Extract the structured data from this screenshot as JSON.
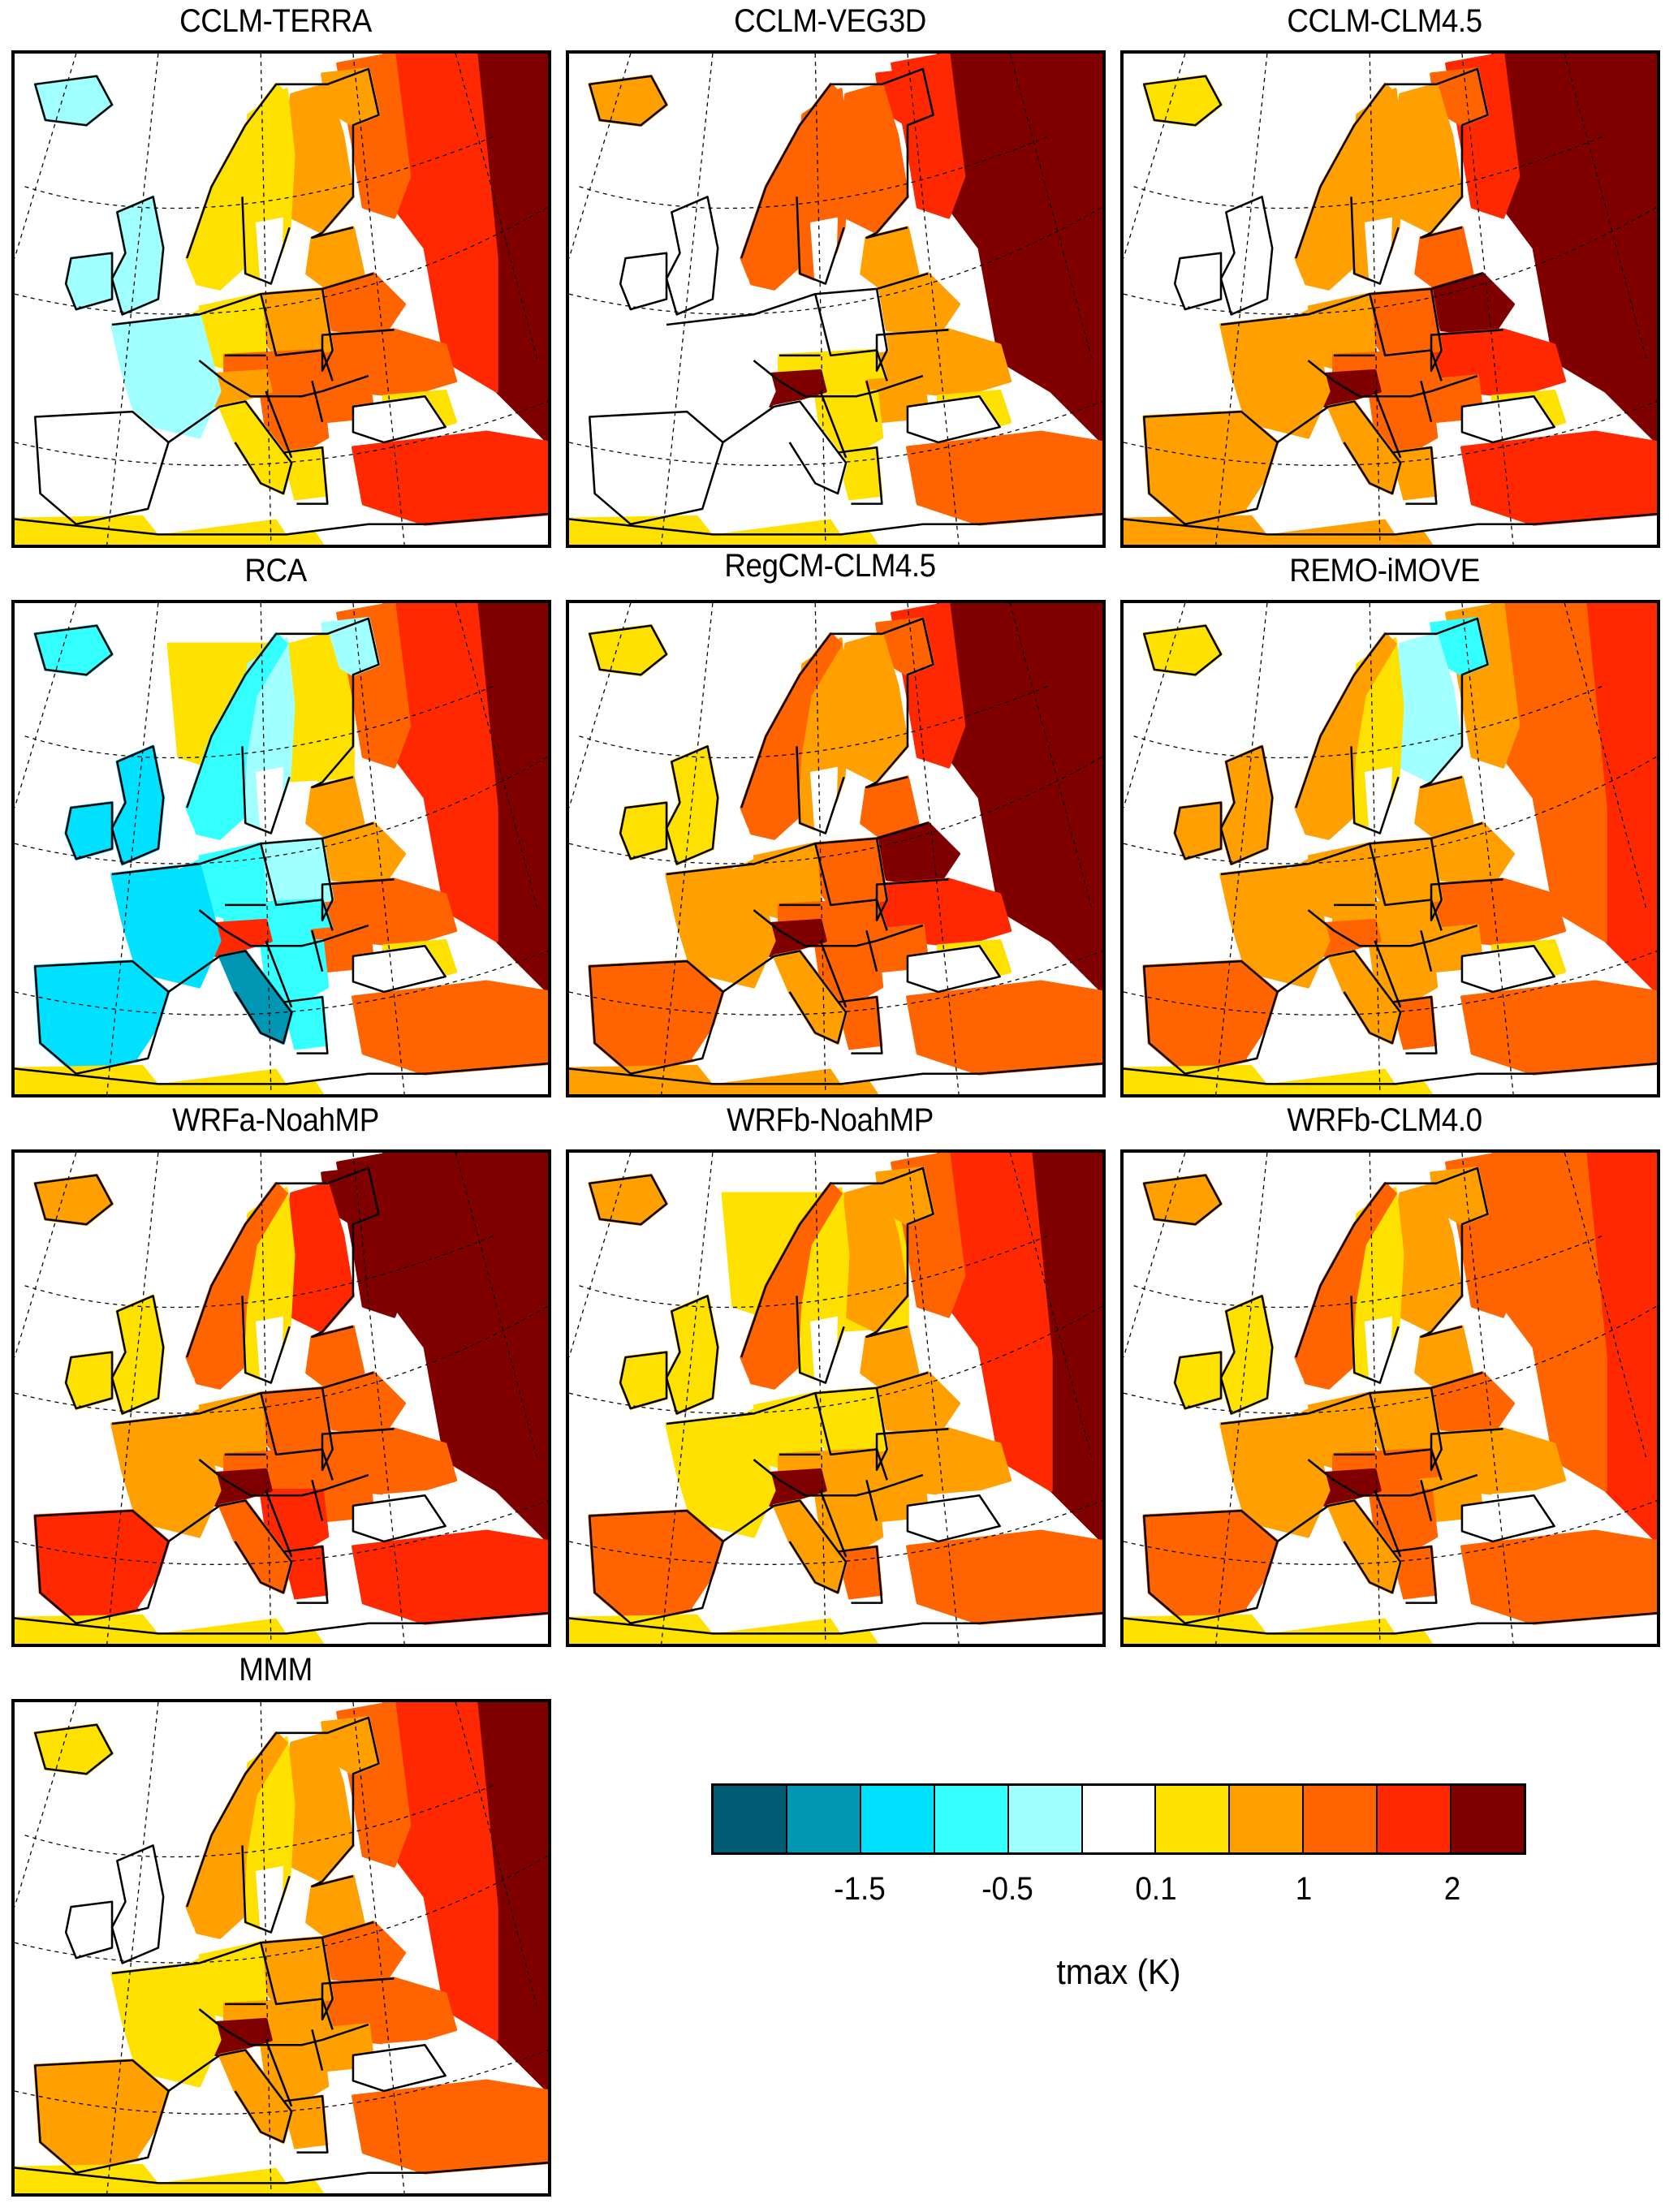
{
  "figure": {
    "variable_label": "tmax (K)"
  },
  "colorbar": {
    "classes": [
      {
        "index": 0,
        "color": "#005a73"
      },
      {
        "index": 1,
        "color": "#0096b4"
      },
      {
        "index": 2,
        "color": "#00e1ff"
      },
      {
        "index": 3,
        "color": "#33ffff"
      },
      {
        "index": 4,
        "color": "#a0ffff"
      },
      {
        "index": 5,
        "color": "#ffffff"
      },
      {
        "index": 6,
        "color": "#ffe100"
      },
      {
        "index": 7,
        "color": "#ffa000"
      },
      {
        "index": 8,
        "color": "#ff6400"
      },
      {
        "index": 9,
        "color": "#ff2800"
      },
      {
        "index": 10,
        "color": "#800000"
      }
    ],
    "ticks": [
      {
        "label": "-1.5",
        "boundary_after_class": 1
      },
      {
        "label": "-0.5",
        "boundary_after_class": 3
      },
      {
        "label": "0.1",
        "boundary_after_class": 5
      },
      {
        "label": "1",
        "boundary_after_class": 7
      },
      {
        "label": "2",
        "boundary_after_class": 9
      }
    ]
  },
  "chart_data": {
    "type": "heatmap",
    "title": "",
    "colorbar_label": "tmax (K)",
    "colorbar_ticks": [
      "-1.5",
      "-0.5",
      "0.1",
      "1",
      "2"
    ],
    "value_classes_note": "region values are colorbar class indices 0-10 (0=darkest blue, 5=white, 10=dark red)",
    "panels": [
      {
        "name": "CCLM-TERRA",
        "regions": {
          "iceland": 4,
          "ocean_north": 5,
          "norway": 6,
          "sweden": 6,
          "finland": 7,
          "kola": 7,
          "russia_ne": 8,
          "russia_e": 9,
          "russia_far_e": 10,
          "baltics": 7,
          "belarus": 8,
          "ukraine": 8,
          "uk": 4,
          "ireland": 4,
          "france": 4,
          "iberia": 5,
          "benelux_germany": 6,
          "poland": 7,
          "central": 8,
          "alps": 7,
          "italy": 6,
          "balkans": 8,
          "romania": 8,
          "greece": 6,
          "black_sea_n": 6,
          "turkey": 9,
          "n_africa": 6
        }
      },
      {
        "name": "CCLM-VEG3D",
        "regions": {
          "iceland": 7,
          "ocean_north": 5,
          "norway": 8,
          "sweden": 8,
          "finland": 8,
          "kola": 9,
          "russia_ne": 9,
          "russia_e": 10,
          "russia_far_e": 10,
          "baltics": 7,
          "belarus": 7,
          "ukraine": 7,
          "uk": 5,
          "ireland": 5,
          "france": 5,
          "iberia": 5,
          "benelux_germany": 5,
          "poland": 5,
          "central": 6,
          "alps": 10,
          "italy": 5,
          "balkans": 6,
          "romania": 7,
          "greece": 6,
          "black_sea_n": 6,
          "turkey": 8,
          "n_africa": 6
        }
      },
      {
        "name": "CCLM-CLM4.5",
        "regions": {
          "iceland": 6,
          "ocean_north": 5,
          "norway": 7,
          "sweden": 7,
          "finland": 7,
          "kola": 8,
          "russia_ne": 9,
          "russia_e": 10,
          "russia_far_e": 10,
          "baltics": 8,
          "belarus": 10,
          "ukraine": 9,
          "uk": 5,
          "ireland": 5,
          "france": 7,
          "iberia": 7,
          "benelux_germany": 7,
          "poland": 8,
          "central": 8,
          "alps": 10,
          "italy": 7,
          "balkans": 8,
          "romania": 8,
          "greece": 7,
          "black_sea_n": 6,
          "turkey": 9,
          "n_africa": 7
        }
      },
      {
        "name": "RCA",
        "regions": {
          "iceland": 3,
          "ocean_north": 6,
          "norway": 3,
          "sweden": 4,
          "finland": 6,
          "kola": 4,
          "russia_ne": 8,
          "russia_e": 9,
          "russia_far_e": 10,
          "baltics": 7,
          "belarus": 7,
          "ukraine": 8,
          "uk": 2,
          "ireland": 2,
          "france": 2,
          "iberia": 2,
          "benelux_germany": 3,
          "poland": 4,
          "central": 3,
          "alps": 9,
          "italy": 1,
          "balkans": 3,
          "romania": 8,
          "greece": 3,
          "black_sea_n": 6,
          "turkey": 8,
          "n_africa": 6
        }
      },
      {
        "name": "RegCM-CLM4.5",
        "regions": {
          "iceland": 6,
          "ocean_north": 5,
          "norway": 8,
          "sweden": 7,
          "finland": 7,
          "kola": 8,
          "russia_ne": 9,
          "russia_e": 10,
          "russia_far_e": 10,
          "baltics": 8,
          "belarus": 10,
          "ukraine": 9,
          "uk": 6,
          "ireland": 6,
          "france": 7,
          "iberia": 8,
          "benelux_germany": 7,
          "poland": 8,
          "central": 8,
          "alps": 10,
          "italy": 7,
          "balkans": 8,
          "romania": 8,
          "greece": 8,
          "black_sea_n": 6,
          "turkey": 8,
          "n_africa": 7
        }
      },
      {
        "name": "REMO-iMOVE",
        "regions": {
          "iceland": 6,
          "ocean_north": 5,
          "norway": 7,
          "sweden": 6,
          "finland": 4,
          "kola": 3,
          "russia_ne": 7,
          "russia_e": 8,
          "russia_far_e": 9,
          "baltics": 7,
          "belarus": 7,
          "ukraine": 8,
          "uk": 7,
          "ireland": 7,
          "france": 7,
          "iberia": 8,
          "benelux_germany": 7,
          "poland": 7,
          "central": 7,
          "alps": 8,
          "italy": 7,
          "balkans": 7,
          "romania": 7,
          "greece": 8,
          "black_sea_n": 6,
          "turkey": 8,
          "n_africa": 6
        }
      },
      {
        "name": "WRFa-NoahMP",
        "regions": {
          "iceland": 7,
          "ocean_north": 5,
          "norway": 8,
          "sweden": 6,
          "finland": 9,
          "kola": 10,
          "russia_ne": 10,
          "russia_e": 10,
          "russia_far_e": 10,
          "baltics": 8,
          "belarus": 8,
          "ukraine": 8,
          "uk": 6,
          "ireland": 6,
          "france": 7,
          "iberia": 9,
          "benelux_germany": 7,
          "poland": 8,
          "central": 8,
          "alps": 10,
          "italy": 8,
          "balkans": 9,
          "romania": 8,
          "greece": 9,
          "black_sea_n": 5,
          "turkey": 9,
          "n_africa": 6
        }
      },
      {
        "name": "WRFb-NoahMP",
        "regions": {
          "iceland": 7,
          "ocean_north": 6,
          "norway": 8,
          "sweden": 6,
          "finland": 7,
          "kola": 7,
          "russia_ne": 8,
          "russia_e": 9,
          "russia_far_e": 10,
          "baltics": 7,
          "belarus": 7,
          "ukraine": 7,
          "uk": 6,
          "ireland": 6,
          "france": 6,
          "iberia": 8,
          "benelux_germany": 6,
          "poland": 6,
          "central": 7,
          "alps": 10,
          "italy": 7,
          "balkans": 7,
          "romania": 7,
          "greece": 8,
          "black_sea_n": 5,
          "turkey": 8,
          "n_africa": 6
        }
      },
      {
        "name": "WRFb-CLM4.0",
        "regions": {
          "iceland": 7,
          "ocean_north": 5,
          "norway": 8,
          "sweden": 6,
          "finland": 7,
          "kola": 7,
          "russia_ne": 8,
          "russia_e": 8,
          "russia_far_e": 9,
          "baltics": 7,
          "belarus": 8,
          "ukraine": 7,
          "uk": 6,
          "ireland": 6,
          "france": 7,
          "iberia": 8,
          "benelux_germany": 7,
          "poland": 7,
          "central": 8,
          "alps": 10,
          "italy": 7,
          "balkans": 8,
          "romania": 7,
          "greece": 8,
          "black_sea_n": 5,
          "turkey": 8,
          "n_africa": 6
        }
      },
      {
        "name": "MMM",
        "regions": {
          "iceland": 6,
          "ocean_north": 5,
          "norway": 7,
          "sweden": 6,
          "finland": 7,
          "kola": 7,
          "russia_ne": 8,
          "russia_e": 9,
          "russia_far_e": 10,
          "baltics": 7,
          "belarus": 8,
          "ukraine": 8,
          "uk": 5,
          "ireland": 5,
          "france": 6,
          "iberia": 7,
          "benelux_germany": 6,
          "poland": 7,
          "central": 7,
          "alps": 10,
          "italy": 7,
          "balkans": 7,
          "romania": 7,
          "greece": 7,
          "black_sea_n": 5,
          "turkey": 8,
          "n_africa": 6
        }
      }
    ]
  }
}
